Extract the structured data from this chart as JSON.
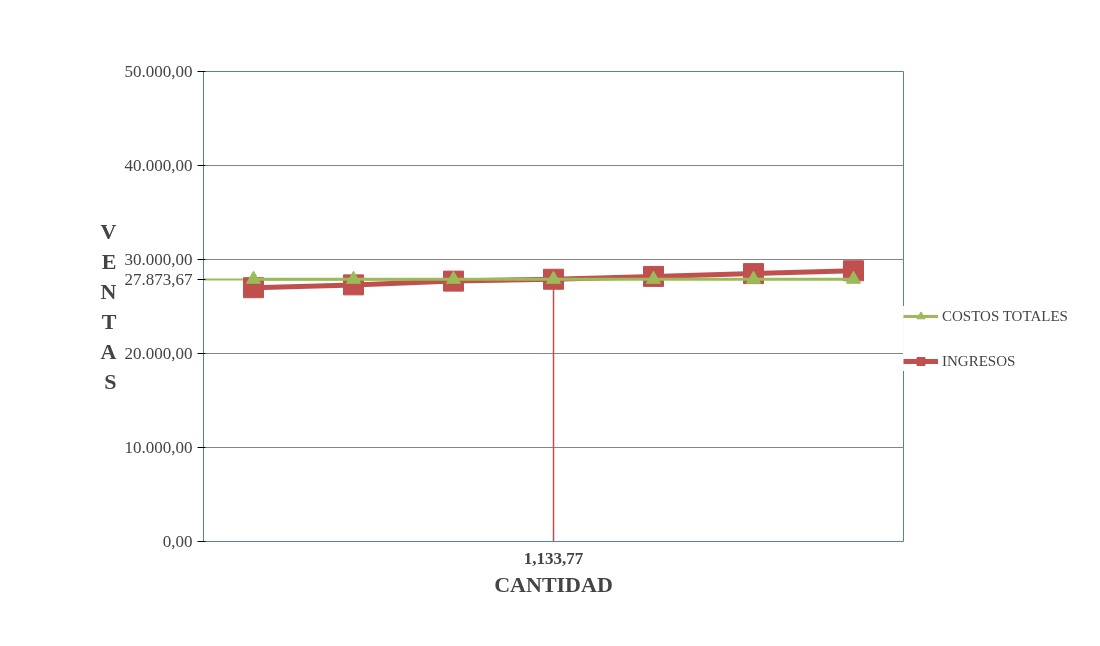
{
  "chart_data": {
    "type": "line",
    "xlabel": "CANTIDAD",
    "ylabel": "VENTAS",
    "categories": [
      null,
      null,
      null,
      "1,133,77",
      null,
      null,
      null
    ],
    "series": [
      {
        "name": "COSTOS TOTALES",
        "color": "#9bbb59",
        "marker": "triangle",
        "values": [
          27900,
          27900,
          27900,
          27900,
          27900,
          27900,
          27900
        ]
      },
      {
        "name": "INGRESOS",
        "color": "#c0504d",
        "marker": "square",
        "values": [
          27000,
          27300,
          27700,
          27900,
          28200,
          28500,
          28800
        ]
      }
    ],
    "ylim": [
      0,
      50000
    ],
    "yticks": [
      {
        "value": 0,
        "label": "0,00"
      },
      {
        "value": 10000,
        "label": "10.000,00"
      },
      {
        "value": 20000,
        "label": "20.000,00"
      },
      {
        "value": 30000,
        "label": "30.000,00"
      },
      {
        "value": 40000,
        "label": "40.000,00"
      },
      {
        "value": 50000,
        "label": "50.000,00"
      }
    ],
    "ref_lines": [
      {
        "axis": "y",
        "value": 27873.67,
        "label": "27.873,67",
        "color": "#9bbb59"
      },
      {
        "axis": "x",
        "value": "1,133,77",
        "color": "#c0504d"
      }
    ],
    "grid": "y",
    "legend": "right",
    "line_style": "solid"
  }
}
